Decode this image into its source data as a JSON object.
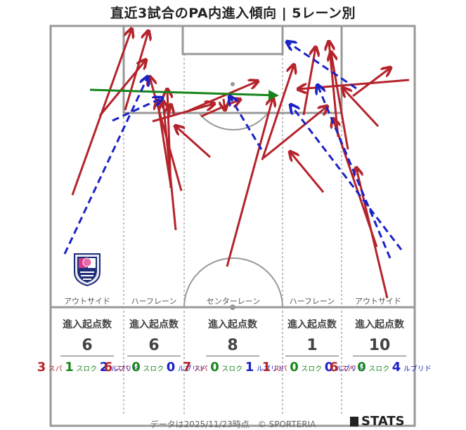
{
  "title": "直近3試合のPA内進入傾向 | 5レーン別",
  "lanes": [
    {
      "label": "アウトサイド",
      "stat_head": "進入起点数",
      "total": "6",
      "pass": "3",
      "cross": "1",
      "dribble": "2"
    },
    {
      "label": "ハーフレーン",
      "stat_head": "進入起点数",
      "total": "6",
      "pass": "6",
      "cross": "0",
      "dribble": "0"
    },
    {
      "label": "センターレーン",
      "stat_head": "進入起点数",
      "total": "8",
      "pass": "7",
      "cross": "0",
      "dribble": "1"
    },
    {
      "label": "ハーフレーン",
      "stat_head": "進入起点数",
      "total": "1",
      "pass": "1",
      "cross": "0",
      "dribble": "0"
    },
    {
      "label": "アウトサイド",
      "stat_head": "進入起点数",
      "total": "10",
      "pass": "6",
      "cross": "0",
      "dribble": "4"
    }
  ],
  "legend": {
    "pass": "パス",
    "cross": "クロス",
    "dribble": "ドリブル"
  },
  "colors": {
    "pass": "#b5232b",
    "cross": "#17851c",
    "dribble": "#1a22c4",
    "lines": "#999999"
  },
  "footer": "データは2025/11/23時点　© SPORTERIA",
  "brand": "STATS"
}
